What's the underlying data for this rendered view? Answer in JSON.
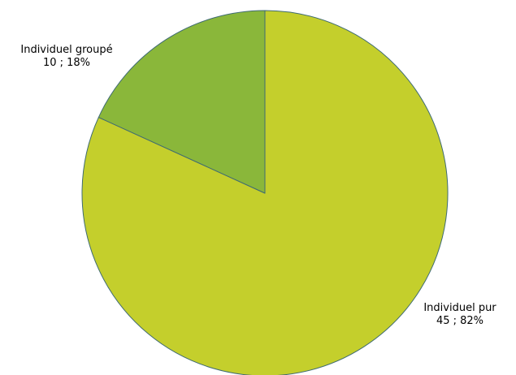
{
  "chart_data": {
    "type": "pie",
    "start": "12 o'clock",
    "direction": "clockwise",
    "slices": [
      {
        "label": "Individuel pur",
        "value": 45,
        "percent": 82,
        "value_text": "45 ; 82%",
        "color": "#c4cf2c"
      },
      {
        "label": "Individuel groupé",
        "value": 10,
        "percent": 18,
        "value_text": "10 ; 18%",
        "color": "#8ab73a"
      }
    ],
    "edge_color": "#3f6b73"
  }
}
